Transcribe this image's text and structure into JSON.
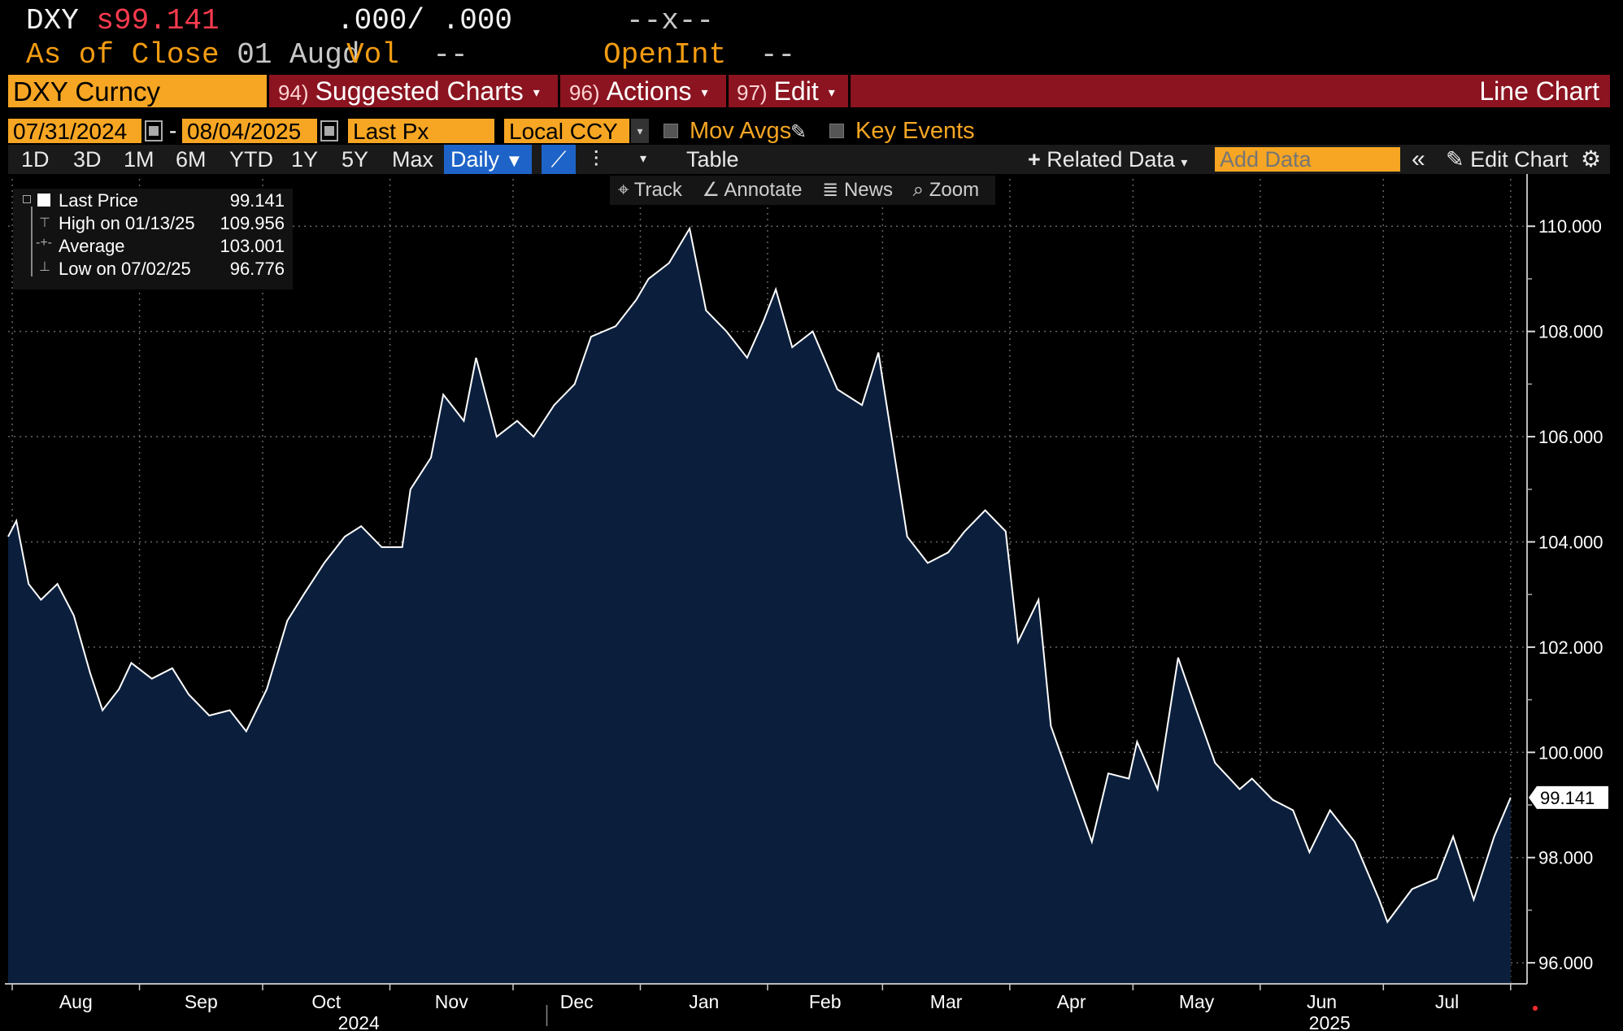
{
  "header": {
    "ticker": "DXY",
    "price_prefix": "s",
    "price": "99.141",
    "bid_ask": ".000/ .000",
    "change": "--x--",
    "asof_label": "As of Close",
    "asof_date": "01 Augd",
    "vol_label": "Vol",
    "vol_value": "--",
    "openint_label": "OpenInt",
    "openint_value": "--"
  },
  "command_bar": {
    "security": "DXY Curncy",
    "menus": [
      {
        "num": "94)",
        "label": "Suggested Charts"
      },
      {
        "num": "96)",
        "label": "Actions"
      },
      {
        "num": "97)",
        "label": "Edit"
      }
    ],
    "chart_type": "Line Chart"
  },
  "settings_bar": {
    "start_date": "07/31/2024",
    "date_sep": "-",
    "end_date": "08/04/2025",
    "field": "Last Px",
    "currency": "Local CCY",
    "mov_avgs": "Mov Avgs",
    "key_events": "Key Events"
  },
  "toolbar": {
    "periods": [
      "1D",
      "3D",
      "1M",
      "6M",
      "YTD",
      "1Y",
      "5Y",
      "Max"
    ],
    "frequency": "Daily",
    "frequency_caret": "▼",
    "table": "Table",
    "related_data": "Related Data",
    "add_data_placeholder": "Add Data",
    "edit_chart": "Edit Chart"
  },
  "chart_tools": [
    "Track",
    "Annotate",
    "News",
    "Zoom"
  ],
  "legend": [
    {
      "label": "Last Price",
      "value": "99.141"
    },
    {
      "label": "High on 01/13/25",
      "value": "109.956"
    },
    {
      "label": "Average",
      "value": "103.001"
    },
    {
      "label": "Low on 07/02/25",
      "value": "96.776"
    }
  ],
  "colors": {
    "background": "#000000",
    "line": "#ffffff",
    "area": "#0b1f3d",
    "accent_orange": "#f6a623",
    "bar_red": "#8b1420",
    "price_red": "#ff3b4e",
    "active_blue": "#1e64c8"
  },
  "chart_data": {
    "type": "area",
    "title": "",
    "ylabel": "",
    "xlabel": "",
    "ylim": [
      95.6,
      110.9
    ],
    "y_ticks": [
      "110.000",
      "108.000",
      "106.000",
      "104.000",
      "102.000",
      "100.000",
      "98.000",
      "96.000"
    ],
    "y_tick_values": [
      110,
      108,
      106,
      104,
      102,
      100,
      98,
      96
    ],
    "x_months": [
      "Aug",
      "Sep",
      "Oct",
      "Nov",
      "Dec",
      "Jan",
      "Feb",
      "Mar",
      "Apr",
      "May",
      "Jun",
      "Jul"
    ],
    "x_years": [
      "2024",
      "2025"
    ],
    "last_value_label": "99.141",
    "x": [
      "2024-07-31",
      "2024-08-02",
      "2024-08-05",
      "2024-08-08",
      "2024-08-12",
      "2024-08-16",
      "2024-08-20",
      "2024-08-23",
      "2024-08-27",
      "2024-08-30",
      "2024-09-04",
      "2024-09-09",
      "2024-09-13",
      "2024-09-18",
      "2024-09-23",
      "2024-09-27",
      "2024-10-02",
      "2024-10-07",
      "2024-10-11",
      "2024-10-16",
      "2024-10-21",
      "2024-10-25",
      "2024-10-30",
      "2024-11-04",
      "2024-11-06",
      "2024-11-11",
      "2024-11-14",
      "2024-11-19",
      "2024-11-22",
      "2024-11-27",
      "2024-12-02",
      "2024-12-06",
      "2024-12-11",
      "2024-12-16",
      "2024-12-20",
      "2024-12-26",
      "2024-12-31",
      "2025-01-03",
      "2025-01-08",
      "2025-01-13",
      "2025-01-17",
      "2025-01-22",
      "2025-01-27",
      "2025-01-31",
      "2025-02-03",
      "2025-02-07",
      "2025-02-12",
      "2025-02-18",
      "2025-02-24",
      "2025-02-28",
      "2025-03-04",
      "2025-03-07",
      "2025-03-12",
      "2025-03-17",
      "2025-03-21",
      "2025-03-26",
      "2025-03-31",
      "2025-04-03",
      "2025-04-08",
      "2025-04-11",
      "2025-04-16",
      "2025-04-21",
      "2025-04-25",
      "2025-04-30",
      "2025-05-02",
      "2025-05-07",
      "2025-05-12",
      "2025-05-16",
      "2025-05-21",
      "2025-05-27",
      "2025-05-30",
      "2025-06-04",
      "2025-06-09",
      "2025-06-13",
      "2025-06-18",
      "2025-06-24",
      "2025-06-30",
      "2025-07-02",
      "2025-07-08",
      "2025-07-14",
      "2025-07-18",
      "2025-07-23",
      "2025-07-28",
      "2025-08-01"
    ],
    "series": [
      {
        "values": [
          104.1,
          104.4,
          103.2,
          102.9,
          103.2,
          102.6,
          101.5,
          100.8,
          101.2,
          101.7,
          101.4,
          101.6,
          101.1,
          100.7,
          100.8,
          100.4,
          101.2,
          102.5,
          103.0,
          103.6,
          104.1,
          104.3,
          103.9,
          103.9,
          105.0,
          105.6,
          106.8,
          106.3,
          107.5,
          106.0,
          106.3,
          106.0,
          106.6,
          107.0,
          107.9,
          108.1,
          108.6,
          109.0,
          109.3,
          109.956,
          108.4,
          108.0,
          107.5,
          108.2,
          108.8,
          107.7,
          108.0,
          106.9,
          106.6,
          107.6,
          105.6,
          104.1,
          103.6,
          103.8,
          104.2,
          104.6,
          104.2,
          102.1,
          102.9,
          100.5,
          99.4,
          98.3,
          99.6,
          99.5,
          100.2,
          99.3,
          101.8,
          100.9,
          99.8,
          99.3,
          99.5,
          99.1,
          98.9,
          98.1,
          98.9,
          98.3,
          97.2,
          96.776,
          97.4,
          97.6,
          98.4,
          97.2,
          98.4,
          99.141
        ]
      }
    ]
  }
}
